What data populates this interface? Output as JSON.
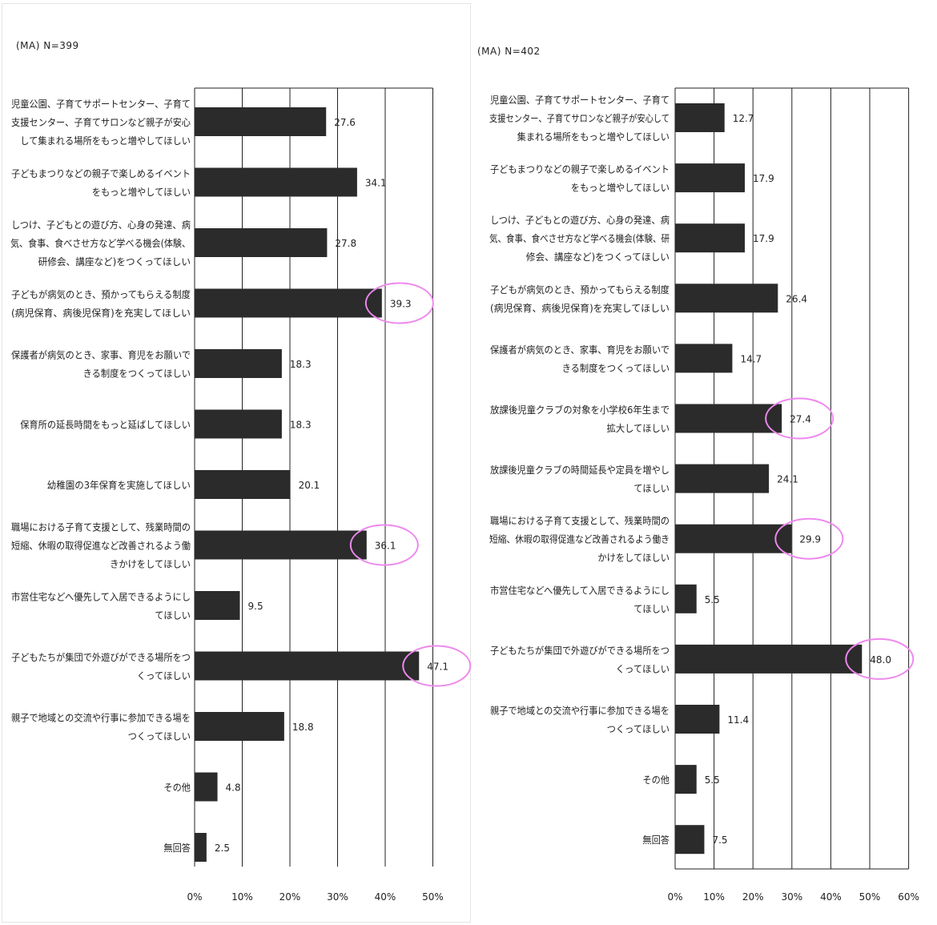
{
  "chart_data": [
    {
      "type": "bar",
      "orientation": "horizontal",
      "note": "(MA)  N=399",
      "categories": [
        [
          "児童公園、子育てサポートセンター、子育て",
          "支援センター、子育てサロンなど親子が安心",
          "して集まれる場所をもっと増やしてほしい"
        ],
        [
          "子どもまつりなどの親子で楽しめるイベント",
          "をもっと増やしてほしい"
        ],
        [
          "しつけ、子どもとの遊び方、心身の発達、病",
          "気、食事、食べさせ方など学べる機会(体験、",
          "研修会、講座など)をつくってほしい"
        ],
        [
          "子どもが病気のとき、預かってもらえる制度",
          "(病児保育、病後児保育)を充実してほしい"
        ],
        [
          "保護者が病気のとき、家事、育児をお願いで",
          "きる制度をつくってほしい"
        ],
        [
          "保育所の延長時間をもっと延ばしてほしい"
        ],
        [
          "幼稚園の3年保育を実施してほしい"
        ],
        [
          "職場における子育て支援として、残業時間の",
          "短縮、休暇の取得促進など改善されるよう働",
          "きかけをしてほしい"
        ],
        [
          "市営住宅などへ優先して入居できるようにし",
          "てほしい"
        ],
        [
          "子どもたちが集団で外遊びができる場所をつ",
          "くってほしい"
        ],
        [
          "親子で地域との交流や行事に参加できる場を",
          "つくってほしい"
        ],
        [
          "その他"
        ],
        [
          "無回答"
        ]
      ],
      "values": [
        27.6,
        34.1,
        27.8,
        39.3,
        18.3,
        18.3,
        20.1,
        36.1,
        9.5,
        47.1,
        18.8,
        4.8,
        2.5
      ],
      "value_labels": [
        "27.6",
        "34.1",
        "27.8",
        "39.3",
        "18.3",
        "18.3",
        "20.1",
        "36.1",
        "9.5",
        "47.1",
        "18.8",
        "4.8",
        "2.5"
      ],
      "highlighted": [
        3,
        7,
        9
      ],
      "xlim": [
        0,
        50
      ],
      "xticks": [
        "0%",
        "10%",
        "20%",
        "30%",
        "40%",
        "50%"
      ],
      "grid": true
    },
    {
      "type": "bar",
      "orientation": "horizontal",
      "note": "(MA)  N=402",
      "categories": [
        [
          "児童公園、子育てサポートセンター、子育て",
          "支援センター、子育てサロンなど親子が安心して",
          "集まれる場所をもっと増やしてほしい"
        ],
        [
          "子どもまつりなどの親子で楽しめるイベント",
          "をもっと増やしてほしい"
        ],
        [
          "しつけ、子どもとの遊び方、心身の発達、病",
          "気、食事、食べさせ方など学べる機会(体験、研",
          "修会、講座など)をつくってほしい"
        ],
        [
          "子どもが病気のとき、預かってもらえる制度",
          "(病児保育、病後児保育)を充実してほしい"
        ],
        [
          "保護者が病気のとき、家事、育児をお願いで",
          "きる制度をつくってほしい"
        ],
        [
          "放課後児童クラブの対象を小学校6年生まで",
          "拡大してほしい"
        ],
        [
          "放課後児童クラブの時間延長や定員を増やし",
          "てほしい"
        ],
        [
          "職場における子育て支援として、残業時間の",
          "短縮、休暇の取得促進など改善されるよう働き",
          "かけをしてほしい"
        ],
        [
          "市営住宅などへ優先して入居できるようにし",
          "てほしい"
        ],
        [
          "子どもたちが集団で外遊びができる場所をつ",
          "くってほしい"
        ],
        [
          "親子で地域との交流や行事に参加できる場を",
          "つくってほしい"
        ],
        [
          "その他"
        ],
        [
          "無回答"
        ]
      ],
      "values": [
        12.7,
        17.9,
        17.9,
        26.4,
        14.7,
        27.4,
        24.1,
        29.9,
        5.5,
        48.0,
        11.4,
        5.5,
        7.5
      ],
      "value_labels": [
        "12.7",
        "17.9",
        "17.9",
        "26.4",
        "14.7",
        "27.4",
        "24.1",
        "29.9",
        "5.5",
        "48.0",
        "11.4",
        "5.5",
        "7.5"
      ],
      "highlighted": [
        5,
        7,
        9
      ],
      "xlim": [
        0,
        60
      ],
      "xticks": [
        "0%",
        "10%",
        "20%",
        "30%",
        "40%",
        "50%",
        "60%"
      ],
      "grid": true
    }
  ],
  "colors": {
    "bar": "#2b2b2b",
    "highlight_ellipse": "#ee88ee",
    "grid": "#222222"
  }
}
